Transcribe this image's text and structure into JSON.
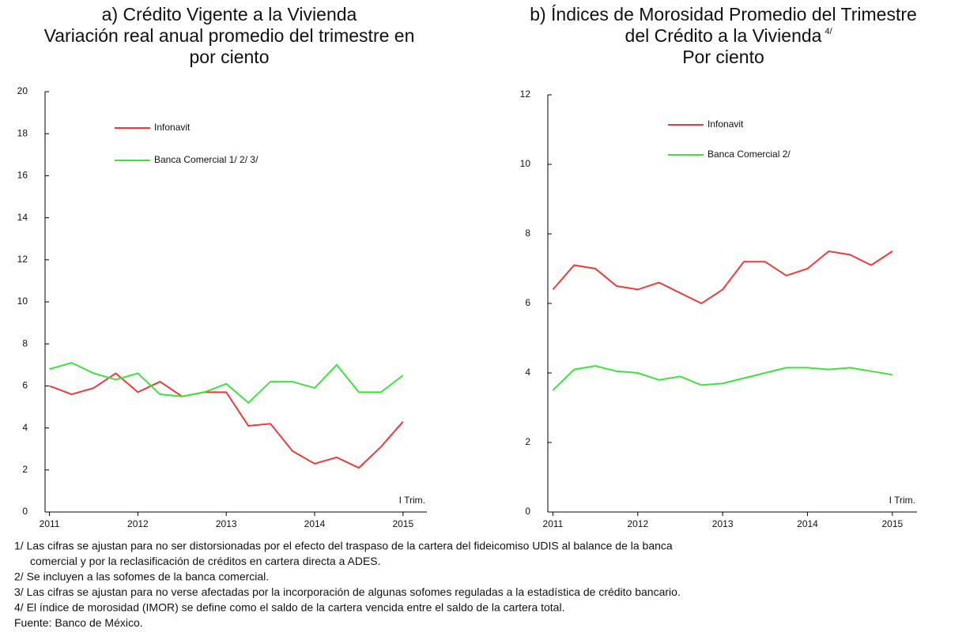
{
  "chart_data": [
    {
      "type": "line",
      "title": "a) Crédito Vigente a la Vivienda",
      "subtitle": [
        "Variación real anual promedio del trimestre en",
        "por ciento"
      ],
      "x": [
        2011,
        2011.25,
        2011.5,
        2011.75,
        2012,
        2012.25,
        2012.5,
        2012.75,
        2013,
        2013.25,
        2013.5,
        2013.75,
        2014,
        2014.25,
        2014.5,
        2014.75,
        2015
      ],
      "series": [
        {
          "name": "Infonavit",
          "color": "#ee3a3a",
          "values": [
            6.0,
            5.6,
            5.9,
            6.6,
            5.7,
            6.2,
            5.5,
            5.7,
            5.7,
            4.1,
            4.2,
            2.9,
            2.3,
            2.6,
            2.1,
            3.1,
            4.3
          ]
        },
        {
          "name": "Banca Comercial 1/ 2/ 3/",
          "color": "#3ee23e",
          "values": [
            6.8,
            7.1,
            6.6,
            6.3,
            6.6,
            5.6,
            5.5,
            5.7,
            6.1,
            5.2,
            6.2,
            6.2,
            5.9,
            7.0,
            5.7,
            5.7,
            6.5
          ]
        }
      ],
      "xlim": [
        2010.95,
        2015.27
      ],
      "xticks": [
        2011,
        2012,
        2013,
        2014,
        2015
      ],
      "ylim": [
        0,
        20
      ],
      "yticks": [
        0,
        2,
        4,
        6,
        8,
        10,
        12,
        14,
        16,
        18,
        20
      ],
      "annotation": "I Trim.",
      "legend": "upper-left"
    },
    {
      "type": "line",
      "title": "b) Índices de Morosidad Promedio del Trimestre",
      "subtitle": [
        "del Crédito a la Vivienda",
        "Por ciento"
      ],
      "subtitle_note": "4/",
      "x": [
        2011,
        2011.25,
        2011.5,
        2011.75,
        2012,
        2012.25,
        2012.5,
        2012.75,
        2013,
        2013.25,
        2013.5,
        2013.75,
        2014,
        2014.25,
        2014.5,
        2014.75,
        2015
      ],
      "series": [
        {
          "name": "Infonavit",
          "color": "#ee3a3a",
          "values": [
            6.4,
            7.1,
            7.0,
            6.5,
            6.4,
            6.6,
            6.3,
            6.0,
            6.4,
            7.2,
            7.2,
            6.8,
            7.0,
            7.5,
            7.4,
            7.1,
            7.5
          ]
        },
        {
          "name": "Banca Comercial 2/",
          "color": "#3ee23e",
          "values": [
            3.5,
            4.1,
            4.2,
            4.05,
            4.0,
            3.8,
            3.9,
            3.65,
            3.7,
            3.85,
            4.0,
            4.15,
            4.15,
            4.1,
            4.15,
            4.05,
            3.95
          ]
        }
      ],
      "xlim": [
        2010.94,
        2015.29
      ],
      "xticks": [
        2011,
        2012,
        2013,
        2014,
        2015
      ],
      "ylim": [
        0,
        12
      ],
      "yticks": [
        0,
        2,
        4,
        6,
        8,
        10,
        12
      ],
      "annotation": "I Trim.",
      "legend": "upper-left"
    }
  ],
  "notes": [
    "1/ Las cifras se ajustan para no ser distorsionadas por el efecto del traspaso de la cartera del fideicomiso UDIS al balance de la banca",
    "comercial y por la reclasificación de créditos en cartera directa a ADES.",
    "2/ Se incluyen a las sofomes de la banca comercial.",
    "3/ Las cifras se ajustan para no verse afectadas por la incorporación de algunas sofomes reguladas a la estadística de crédito bancario.",
    "4/ El índice de morosidad (IMOR) se define como el saldo de la cartera vencida entre el saldo de la cartera total.",
    "Fuente: Banco de México."
  ]
}
